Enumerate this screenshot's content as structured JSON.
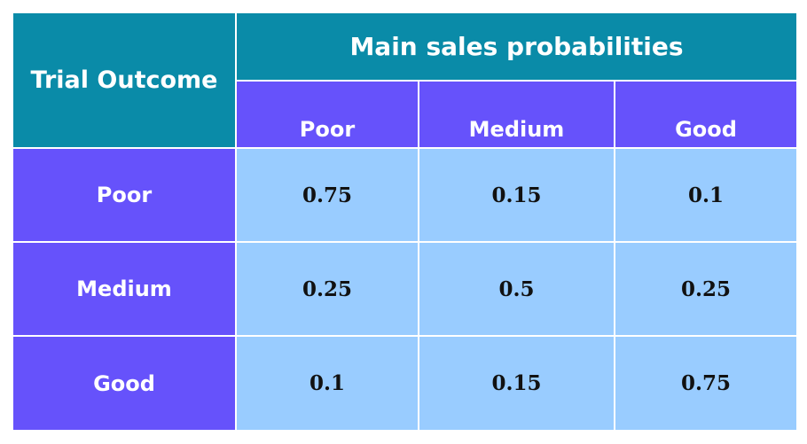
{
  "table": {
    "header": {
      "row_label": "Trial Outcome",
      "group": "Main sales probabilities",
      "columns": [
        "Poor",
        "Medium",
        "Good"
      ]
    },
    "rows": [
      {
        "label": "Poor",
        "values": [
          0.75,
          0.15,
          0.1
        ]
      },
      {
        "label": "Medium",
        "values": [
          0.25,
          0.5,
          0.25
        ]
      },
      {
        "label": "Good",
        "values": [
          0.1,
          0.15,
          0.75
        ]
      }
    ]
  }
}
